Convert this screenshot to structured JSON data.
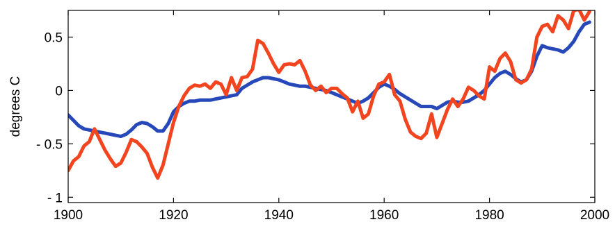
{
  "chart_data": {
    "type": "line",
    "title": "",
    "xlabel": "",
    "ylabel": "degrees C",
    "xlim": [
      1900,
      2000
    ],
    "ylim": [
      -1.05,
      0.75
    ],
    "grid": false,
    "x_ticks": [
      1900,
      1920,
      1940,
      1960,
      1980,
      2000
    ],
    "x_tick_labels": [
      "1900",
      "1920",
      "1940",
      "1960",
      "1980",
      "2000"
    ],
    "y_ticks": [
      0.5,
      0,
      -0.5,
      -1
    ],
    "y_tick_labels": [
      "0.5",
      "0",
      "- 0.5",
      "- 1"
    ],
    "series": [
      {
        "color": "#2748b8",
        "x": [
          1900,
          1901,
          1902,
          1903,
          1904,
          1905,
          1906,
          1907,
          1908,
          1909,
          1910,
          1911,
          1912,
          1913,
          1914,
          1915,
          1916,
          1917,
          1918,
          1919,
          1920,
          1921,
          1922,
          1923,
          1924,
          1925,
          1926,
          1927,
          1928,
          1929,
          1930,
          1931,
          1932,
          1933,
          1934,
          1935,
          1936,
          1937,
          1938,
          1939,
          1940,
          1941,
          1942,
          1943,
          1944,
          1945,
          1946,
          1947,
          1948,
          1949,
          1950,
          1951,
          1952,
          1953,
          1954,
          1955,
          1956,
          1957,
          1958,
          1959,
          1960,
          1961,
          1962,
          1963,
          1964,
          1965,
          1966,
          1967,
          1968,
          1969,
          1970,
          1971,
          1972,
          1973,
          1974,
          1975,
          1976,
          1977,
          1978,
          1979,
          1980,
          1981,
          1982,
          1983,
          1984,
          1985,
          1986,
          1987,
          1988,
          1989,
          1990,
          1991,
          1992,
          1993,
          1994,
          1995,
          1996,
          1997,
          1998,
          1999
        ],
        "y": [
          -0.23,
          -0.28,
          -0.33,
          -0.36,
          -0.37,
          -0.38,
          -0.39,
          -0.4,
          -0.41,
          -0.42,
          -0.43,
          -0.41,
          -0.37,
          -0.32,
          -0.3,
          -0.31,
          -0.34,
          -0.38,
          -0.38,
          -0.31,
          -0.2,
          -0.15,
          -0.12,
          -0.1,
          -0.1,
          -0.09,
          -0.09,
          -0.09,
          -0.08,
          -0.07,
          -0.06,
          -0.05,
          -0.04,
          0.02,
          0.05,
          0.08,
          0.1,
          0.12,
          0.12,
          0.11,
          0.1,
          0.08,
          0.06,
          0.05,
          0.04,
          0.04,
          0.03,
          0.02,
          0.01,
          0.0,
          -0.02,
          -0.04,
          -0.06,
          -0.08,
          -0.1,
          -0.12,
          -0.1,
          -0.07,
          -0.02,
          0.03,
          0.06,
          0.04,
          0.01,
          -0.03,
          -0.06,
          -0.09,
          -0.12,
          -0.15,
          -0.15,
          -0.15,
          -0.17,
          -0.14,
          -0.11,
          -0.1,
          -0.11,
          -0.11,
          -0.1,
          -0.07,
          -0.04,
          0.0,
          0.06,
          0.12,
          0.16,
          0.18,
          0.15,
          0.11,
          0.08,
          0.1,
          0.18,
          0.32,
          0.42,
          0.4,
          0.39,
          0.38,
          0.36,
          0.4,
          0.46,
          0.55,
          0.62,
          0.64
        ]
      },
      {
        "color": "#f2451f",
        "x": [
          1900,
          1901,
          1902,
          1903,
          1904,
          1905,
          1906,
          1907,
          1908,
          1909,
          1910,
          1911,
          1912,
          1913,
          1914,
          1915,
          1916,
          1917,
          1918,
          1919,
          1920,
          1921,
          1922,
          1923,
          1924,
          1925,
          1926,
          1927,
          1928,
          1929,
          1930,
          1931,
          1932,
          1933,
          1934,
          1935,
          1936,
          1937,
          1938,
          1939,
          1940,
          1941,
          1942,
          1943,
          1944,
          1945,
          1946,
          1947,
          1948,
          1949,
          1950,
          1951,
          1952,
          1953,
          1954,
          1955,
          1956,
          1957,
          1958,
          1959,
          1960,
          1961,
          1962,
          1963,
          1964,
          1965,
          1966,
          1967,
          1968,
          1969,
          1970,
          1971,
          1972,
          1973,
          1974,
          1975,
          1976,
          1977,
          1978,
          1979,
          1980,
          1981,
          1982,
          1983,
          1984,
          1985,
          1986,
          1987,
          1988,
          1989,
          1990,
          1991,
          1992,
          1993,
          1994,
          1995,
          1996,
          1997,
          1998,
          1999
        ],
        "y": [
          -0.75,
          -0.66,
          -0.62,
          -0.52,
          -0.48,
          -0.36,
          -0.46,
          -0.56,
          -0.64,
          -0.71,
          -0.68,
          -0.58,
          -0.46,
          -0.48,
          -0.53,
          -0.59,
          -0.72,
          -0.82,
          -0.7,
          -0.5,
          -0.3,
          -0.15,
          -0.05,
          0.02,
          0.05,
          0.04,
          0.06,
          0.02,
          0.08,
          0.06,
          -0.04,
          0.12,
          0.0,
          0.12,
          0.13,
          0.2,
          0.47,
          0.44,
          0.35,
          0.25,
          0.17,
          0.24,
          0.25,
          0.24,
          0.28,
          0.18,
          0.05,
          0.0,
          0.04,
          -0.02,
          0.02,
          0.02,
          -0.03,
          -0.07,
          -0.2,
          -0.1,
          -0.26,
          -0.22,
          -0.05,
          0.06,
          0.08,
          0.15,
          -0.04,
          -0.1,
          -0.27,
          -0.39,
          -0.43,
          -0.45,
          -0.4,
          -0.22,
          -0.44,
          -0.31,
          -0.18,
          -0.08,
          -0.15,
          -0.08,
          0.03,
          0.0,
          -0.05,
          -0.08,
          0.22,
          0.18,
          0.3,
          0.35,
          0.27,
          0.1,
          0.07,
          0.1,
          0.2,
          0.5,
          0.6,
          0.62,
          0.55,
          0.7,
          0.66,
          0.58,
          0.75,
          0.76,
          0.66,
          0.74
        ]
      }
    ]
  }
}
